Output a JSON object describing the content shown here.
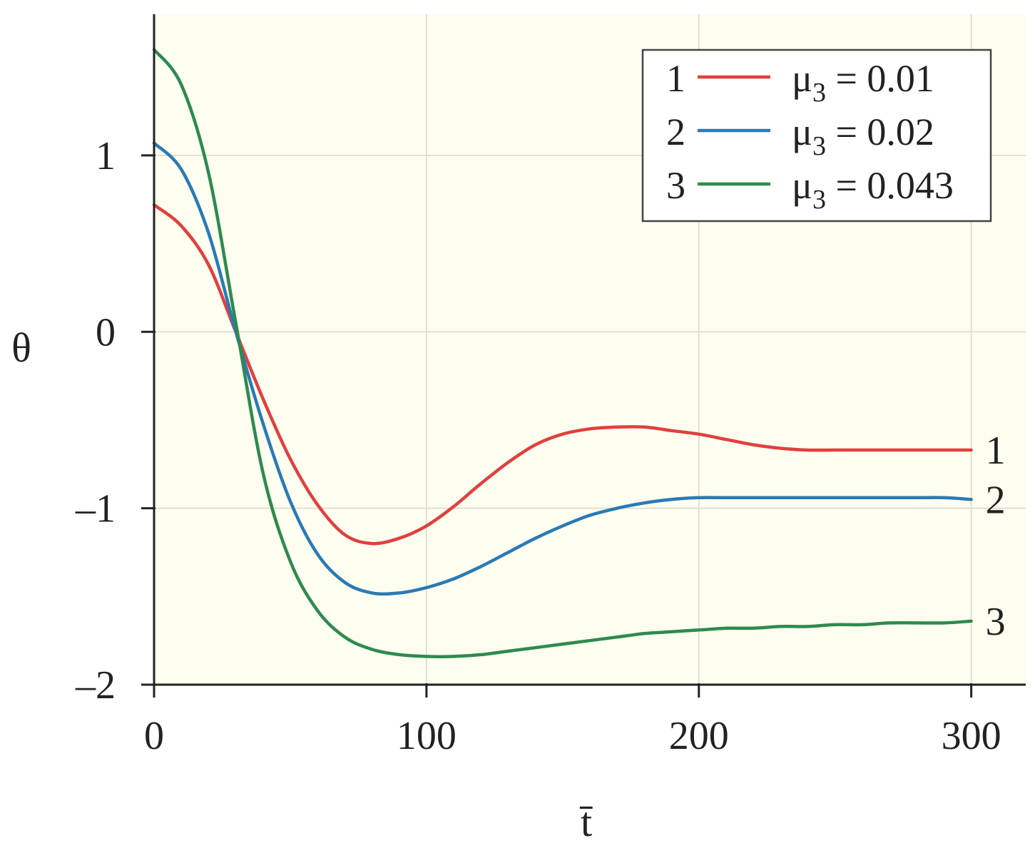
{
  "chart_data": {
    "type": "line",
    "title": "",
    "xlabel": "t̄",
    "ylabel": "θ",
    "xlim": [
      0,
      320
    ],
    "ylim": [
      -2,
      1.8
    ],
    "xticks": [
      0,
      100,
      200,
      300
    ],
    "xtick_labels": [
      "0",
      "100",
      "200",
      "300"
    ],
    "yticks": [
      -2,
      -1,
      0,
      1
    ],
    "ytick_labels": [
      "–2",
      "–1",
      "0",
      "1"
    ],
    "grid": true,
    "legend_position": "top-right",
    "plot_background": "#fdfdf0",
    "series": [
      {
        "name": "μ3 = 0.01",
        "legend_number": "1",
        "end_label": "1",
        "legend_text": {
          "mu": "μ",
          "sub": "3",
          "rest": " = 0.01"
        },
        "color": "#e0403e",
        "x": [
          0,
          10,
          20,
          30,
          40,
          50,
          60,
          70,
          80,
          90,
          100,
          110,
          120,
          130,
          140,
          150,
          160,
          170,
          180,
          190,
          200,
          210,
          220,
          230,
          240,
          250,
          260,
          270,
          280,
          290,
          300
        ],
        "y": [
          0.72,
          0.6,
          0.38,
          0.0,
          -0.38,
          -0.72,
          -0.98,
          -1.15,
          -1.2,
          -1.17,
          -1.1,
          -0.99,
          -0.86,
          -0.74,
          -0.64,
          -0.58,
          -0.55,
          -0.54,
          -0.54,
          -0.56,
          -0.58,
          -0.61,
          -0.64,
          -0.66,
          -0.67,
          -0.67,
          -0.67,
          -0.67,
          -0.67,
          -0.67,
          -0.67
        ]
      },
      {
        "name": "μ3 = 0.02",
        "legend_number": "2",
        "end_label": "2",
        "legend_text": {
          "mu": "μ",
          "sub": "3",
          "rest": " = 0.02"
        },
        "color": "#2a7ab5",
        "x": [
          0,
          10,
          20,
          30,
          40,
          50,
          60,
          70,
          80,
          90,
          100,
          110,
          120,
          130,
          140,
          150,
          160,
          170,
          180,
          190,
          200,
          210,
          220,
          230,
          240,
          250,
          260,
          270,
          280,
          290,
          300
        ],
        "y": [
          1.07,
          0.92,
          0.56,
          0.0,
          -0.52,
          -0.96,
          -1.26,
          -1.42,
          -1.48,
          -1.48,
          -1.45,
          -1.4,
          -1.33,
          -1.25,
          -1.17,
          -1.1,
          -1.04,
          -1.0,
          -0.97,
          -0.95,
          -0.94,
          -0.94,
          -0.94,
          -0.94,
          -0.94,
          -0.94,
          -0.94,
          -0.94,
          -0.94,
          -0.94,
          -0.95
        ]
      },
      {
        "name": "μ3 = 0.043",
        "legend_number": "3",
        "end_label": "3",
        "legend_text": {
          "mu": "μ",
          "sub": "3",
          "rest": " = 0.043"
        },
        "color": "#2e8a4e",
        "x": [
          0,
          10,
          20,
          30,
          40,
          50,
          60,
          70,
          80,
          90,
          100,
          110,
          120,
          130,
          140,
          150,
          160,
          170,
          180,
          190,
          200,
          210,
          220,
          230,
          240,
          250,
          260,
          270,
          280,
          290,
          300
        ],
        "y": [
          1.6,
          1.4,
          0.9,
          0.05,
          -0.8,
          -1.3,
          -1.58,
          -1.73,
          -1.8,
          -1.83,
          -1.84,
          -1.84,
          -1.83,
          -1.81,
          -1.79,
          -1.77,
          -1.75,
          -1.73,
          -1.71,
          -1.7,
          -1.69,
          -1.68,
          -1.68,
          -1.67,
          -1.67,
          -1.66,
          -1.66,
          -1.65,
          -1.65,
          -1.65,
          -1.64
        ]
      }
    ]
  }
}
